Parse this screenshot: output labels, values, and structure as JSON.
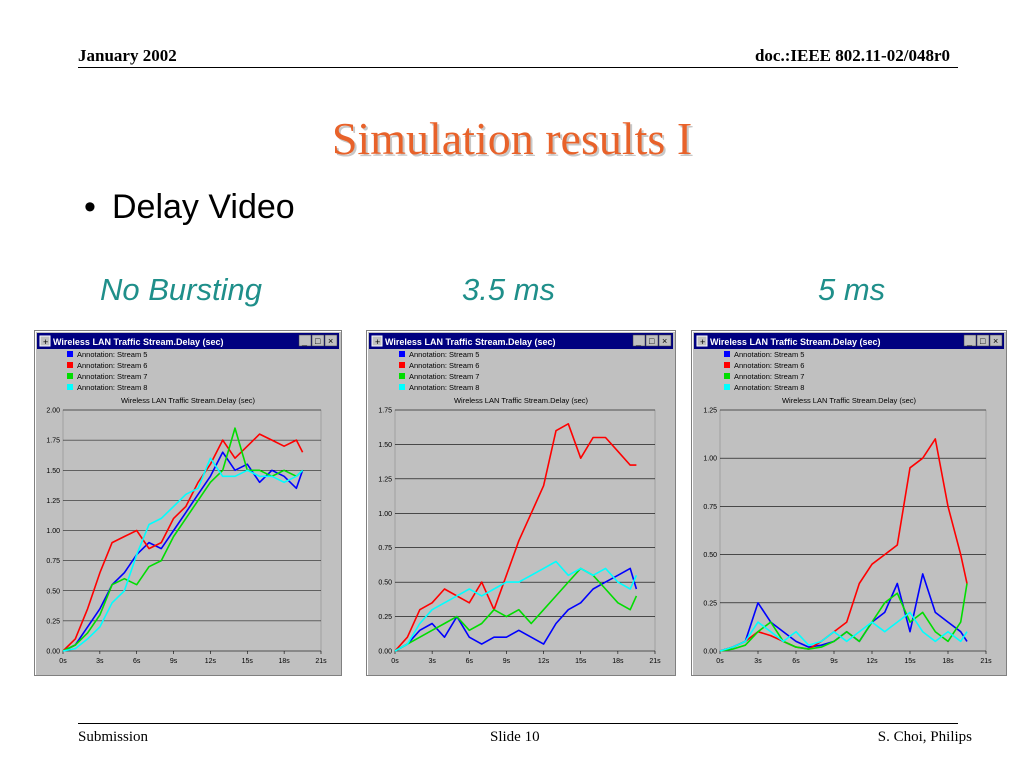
{
  "header": {
    "date": "January 2002",
    "doc": "doc.:IEEE 802.11-02/048r0"
  },
  "slide": {
    "title": "Simulation results I",
    "bullet": "Delay Video",
    "subtitles": [
      "No Bursting",
      "3.5 ms",
      "5 ms"
    ]
  },
  "footer": {
    "left": "Submission",
    "center": "Slide 10",
    "right": "S. Choi, Philips"
  },
  "window": {
    "title": "Wireless LAN Traffic Stream.Delay (sec)",
    "icons": [
      "minimize-icon",
      "maximize-icon",
      "close-icon"
    ]
  },
  "colors": {
    "stream5": "#0000ff",
    "stream6": "#ff0000",
    "stream7": "#00dd00",
    "stream8": "#00ffff",
    "title_bar": "#000080",
    "plot_bg": "#c0c0c0"
  },
  "chart_data": [
    {
      "type": "line",
      "title": "Wireless LAN Traffic Stream.Delay (sec)",
      "subtitle": "No Bursting",
      "xlabel": "",
      "ylabel": "",
      "xlim": [
        0,
        21
      ],
      "ylim": [
        0,
        2.0
      ],
      "x_ticks": [
        "0s",
        "3s",
        "6s",
        "9s",
        "12s",
        "15s",
        "18s",
        "21s"
      ],
      "y_ticks": [
        "0.00",
        "0.25",
        "0.50",
        "0.75",
        "1.00",
        "1.25",
        "1.50",
        "1.75",
        "2.00"
      ],
      "grid": true,
      "legend": "top-left",
      "series": [
        {
          "name": "Annotation:  Stream 5",
          "x": [
            0,
            1,
            2,
            3,
            4,
            5,
            6,
            7,
            8,
            9,
            10,
            11,
            12,
            13,
            14,
            15,
            16,
            17,
            18,
            19,
            19.5
          ],
          "values": [
            0,
            0.05,
            0.2,
            0.35,
            0.55,
            0.65,
            0.8,
            0.9,
            0.85,
            1.0,
            1.15,
            1.3,
            1.45,
            1.65,
            1.5,
            1.55,
            1.4,
            1.5,
            1.45,
            1.35,
            1.5
          ]
        },
        {
          "name": "Annotation:  Stream 6",
          "x": [
            0,
            1,
            2,
            3,
            4,
            5,
            6,
            7,
            8,
            9,
            10,
            11,
            12,
            13,
            14,
            15,
            16,
            17,
            18,
            19,
            19.5
          ],
          "values": [
            0,
            0.1,
            0.35,
            0.65,
            0.9,
            0.95,
            1.0,
            0.85,
            0.9,
            1.1,
            1.2,
            1.4,
            1.55,
            1.75,
            1.6,
            1.7,
            1.8,
            1.75,
            1.7,
            1.75,
            1.65
          ]
        },
        {
          "name": "Annotation:  Stream 7",
          "x": [
            0,
            1,
            2,
            3,
            4,
            5,
            6,
            7,
            8,
            9,
            10,
            11,
            12,
            13,
            14,
            15,
            16,
            17,
            18,
            19,
            19.5
          ],
          "values": [
            0,
            0.05,
            0.15,
            0.3,
            0.55,
            0.6,
            0.55,
            0.7,
            0.75,
            0.95,
            1.1,
            1.25,
            1.4,
            1.5,
            1.85,
            1.5,
            1.5,
            1.45,
            1.5,
            1.45,
            1.5
          ]
        },
        {
          "name": "Annotation:  Stream 8",
          "x": [
            0,
            1,
            2,
            3,
            4,
            5,
            6,
            7,
            8,
            9,
            10,
            11,
            12,
            13,
            14,
            15,
            16,
            17,
            18,
            19,
            19.5
          ],
          "values": [
            0,
            0.02,
            0.1,
            0.2,
            0.4,
            0.5,
            0.8,
            1.05,
            1.1,
            1.2,
            1.3,
            1.35,
            1.6,
            1.45,
            1.45,
            1.5,
            1.45,
            1.45,
            1.4,
            1.45,
            1.5
          ]
        }
      ]
    },
    {
      "type": "line",
      "title": "Wireless LAN Traffic Stream.Delay (sec)",
      "subtitle": "3.5 ms",
      "xlabel": "",
      "ylabel": "",
      "xlim": [
        0,
        21
      ],
      "ylim": [
        0,
        1.75
      ],
      "x_ticks": [
        "0s",
        "3s",
        "6s",
        "9s",
        "12s",
        "15s",
        "18s",
        "21s"
      ],
      "y_ticks": [
        "0.00",
        "0.25",
        "0.50",
        "0.75",
        "1.00",
        "1.25",
        "1.50",
        "1.75"
      ],
      "grid": true,
      "legend": "top-left",
      "series": [
        {
          "name": "Annotation:  Stream 5",
          "x": [
            0,
            1,
            2,
            3,
            4,
            5,
            6,
            7,
            8,
            9,
            10,
            11,
            12,
            13,
            14,
            15,
            16,
            17,
            18,
            19,
            19.5
          ],
          "values": [
            0,
            0.05,
            0.15,
            0.2,
            0.1,
            0.25,
            0.1,
            0.05,
            0.1,
            0.1,
            0.15,
            0.1,
            0.05,
            0.2,
            0.3,
            0.35,
            0.45,
            0.5,
            0.55,
            0.6,
            0.45
          ]
        },
        {
          "name": "Annotation:  Stream 6",
          "x": [
            0,
            1,
            2,
            3,
            4,
            5,
            6,
            7,
            8,
            9,
            10,
            11,
            12,
            13,
            14,
            15,
            16,
            17,
            18,
            19,
            19.5
          ],
          "values": [
            0,
            0.1,
            0.3,
            0.35,
            0.45,
            0.4,
            0.35,
            0.5,
            0.3,
            0.55,
            0.8,
            1.0,
            1.2,
            1.6,
            1.65,
            1.4,
            1.55,
            1.55,
            1.45,
            1.35,
            1.35
          ]
        },
        {
          "name": "Annotation:  Stream 7",
          "x": [
            0,
            1,
            2,
            3,
            4,
            5,
            6,
            7,
            8,
            9,
            10,
            11,
            12,
            13,
            14,
            15,
            16,
            17,
            18,
            19,
            19.5
          ],
          "values": [
            0,
            0.05,
            0.1,
            0.15,
            0.2,
            0.25,
            0.15,
            0.2,
            0.3,
            0.25,
            0.3,
            0.2,
            0.3,
            0.4,
            0.5,
            0.6,
            0.55,
            0.45,
            0.35,
            0.3,
            0.4
          ]
        },
        {
          "name": "Annotation:  Stream 8",
          "x": [
            0,
            1,
            2,
            3,
            4,
            5,
            6,
            7,
            8,
            9,
            10,
            11,
            12,
            13,
            14,
            15,
            16,
            17,
            18,
            19,
            19.5
          ],
          "values": [
            0,
            0.05,
            0.2,
            0.3,
            0.35,
            0.4,
            0.45,
            0.4,
            0.45,
            0.5,
            0.5,
            0.55,
            0.6,
            0.65,
            0.55,
            0.6,
            0.55,
            0.6,
            0.5,
            0.45,
            0.55
          ]
        }
      ]
    },
    {
      "type": "line",
      "title": "Wireless LAN Traffic Stream.Delay (sec)",
      "subtitle": "5 ms",
      "xlabel": "",
      "ylabel": "",
      "xlim": [
        0,
        21
      ],
      "ylim": [
        0,
        1.25
      ],
      "x_ticks": [
        "0s",
        "3s",
        "6s",
        "9s",
        "12s",
        "15s",
        "18s",
        "21s"
      ],
      "y_ticks": [
        "0.00",
        "0.25",
        "0.50",
        "0.75",
        "1.00",
        "1.25"
      ],
      "grid": true,
      "legend": "top-left",
      "series": [
        {
          "name": "Annotation:  Stream 5",
          "x": [
            0,
            1,
            2,
            3,
            4,
            5,
            6,
            7,
            8,
            9,
            10,
            11,
            12,
            13,
            14,
            15,
            16,
            17,
            18,
            19,
            19.5
          ],
          "values": [
            0,
            0.02,
            0.05,
            0.25,
            0.15,
            0.1,
            0.05,
            0.02,
            0.03,
            0.05,
            0.1,
            0.05,
            0.15,
            0.2,
            0.35,
            0.1,
            0.4,
            0.2,
            0.15,
            0.1,
            0.05
          ]
        },
        {
          "name": "Annotation:  Stream 6",
          "x": [
            0,
            1,
            2,
            3,
            4,
            5,
            6,
            7,
            8,
            9,
            10,
            11,
            12,
            13,
            14,
            15,
            16,
            17,
            18,
            19,
            19.5
          ],
          "values": [
            0,
            0.02,
            0.05,
            0.1,
            0.08,
            0.05,
            0.02,
            0.01,
            0.05,
            0.1,
            0.15,
            0.35,
            0.45,
            0.5,
            0.55,
            0.95,
            1.0,
            1.1,
            0.75,
            0.5,
            0.35
          ]
        },
        {
          "name": "Annotation:  Stream 7",
          "x": [
            0,
            1,
            2,
            3,
            4,
            5,
            6,
            7,
            8,
            9,
            10,
            11,
            12,
            13,
            14,
            15,
            16,
            17,
            18,
            19,
            19.5
          ],
          "values": [
            0,
            0.01,
            0.03,
            0.1,
            0.15,
            0.05,
            0.02,
            0.01,
            0.02,
            0.05,
            0.1,
            0.05,
            0.15,
            0.25,
            0.3,
            0.15,
            0.2,
            0.1,
            0.05,
            0.15,
            0.35
          ]
        },
        {
          "name": "Annotation:  Stream 8",
          "x": [
            0,
            1,
            2,
            3,
            4,
            5,
            6,
            7,
            8,
            9,
            10,
            11,
            12,
            13,
            14,
            15,
            16,
            17,
            18,
            19,
            19.5
          ],
          "values": [
            0,
            0.02,
            0.05,
            0.15,
            0.1,
            0.05,
            0.1,
            0.03,
            0.05,
            0.1,
            0.05,
            0.1,
            0.15,
            0.1,
            0.15,
            0.2,
            0.1,
            0.05,
            0.1,
            0.05,
            0.1
          ]
        }
      ]
    }
  ]
}
